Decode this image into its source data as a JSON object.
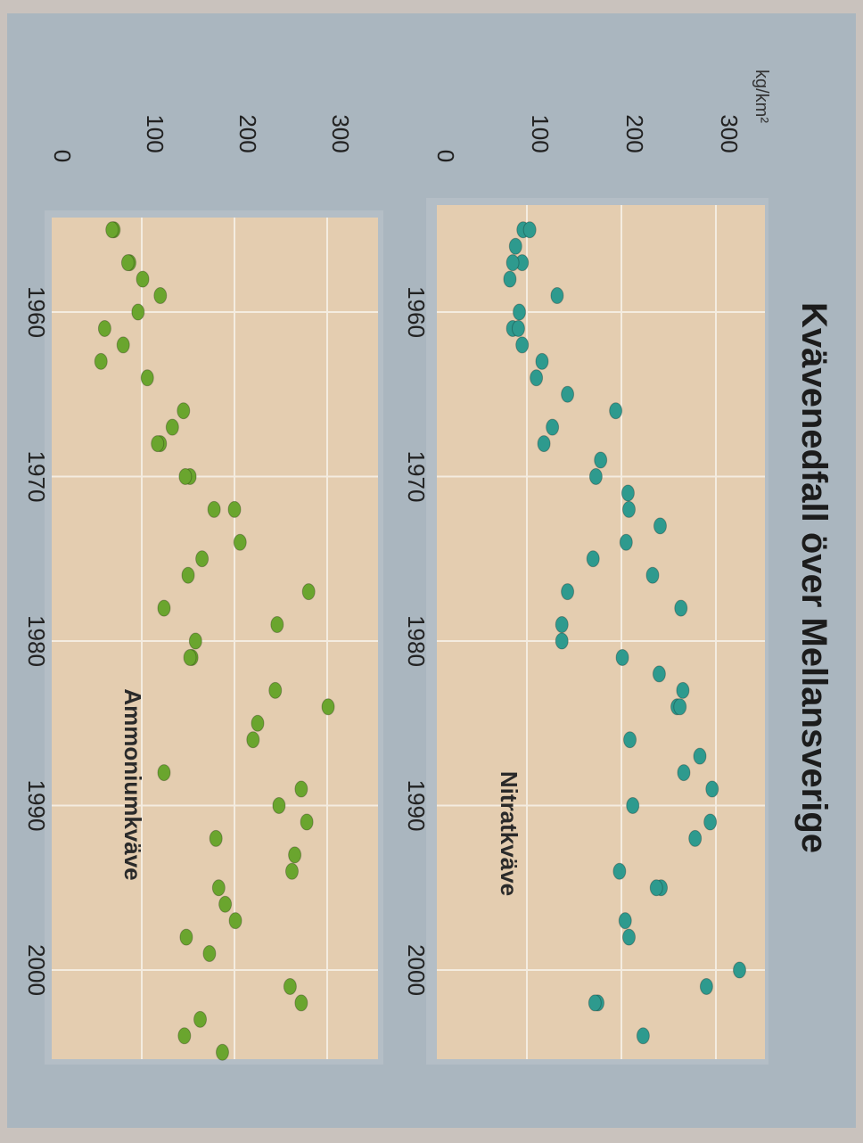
{
  "title": "Kvävenedfall över Mellansverige",
  "unit_label": "kg/km²",
  "colors": {
    "photo_background": "#c9c2bd",
    "page": "#aab6bf",
    "panel_frame": "#b4bec6",
    "plot_area": "#e4cdb0",
    "grid": "#f4ece0",
    "nitrat_points": "#2e9a8e",
    "ammonium_points": "#6aa52e",
    "text": "#222222"
  },
  "chart_data": [
    {
      "type": "scatter",
      "series": [
        {
          "name": "Nitratkväve",
          "points": [
            [
              1955,
              96
            ],
            [
              1955,
              103
            ],
            [
              1956,
              88
            ],
            [
              1957,
              95
            ],
            [
              1957,
              85
            ],
            [
              1958,
              82
            ],
            [
              1959,
              132
            ],
            [
              1960,
              92
            ],
            [
              1961,
              85
            ],
            [
              1961,
              91
            ],
            [
              1962,
              95
            ],
            [
              1963,
              116
            ],
            [
              1964,
              110
            ],
            [
              1965,
              143
            ],
            [
              1966,
              194
            ],
            [
              1967,
              127
            ],
            [
              1968,
              118
            ],
            [
              1969,
              178
            ],
            [
              1970,
              173
            ],
            [
              1971,
              207
            ],
            [
              1972,
              208
            ],
            [
              1973,
              241
            ],
            [
              1974,
              205
            ],
            [
              1975,
              170
            ],
            [
              1976,
              233
            ],
            [
              1977,
              143
            ],
            [
              1978,
              263
            ],
            [
              1979,
              137
            ],
            [
              1980,
              137
            ],
            [
              1981,
              201
            ],
            [
              1982,
              240
            ],
            [
              1983,
              265
            ],
            [
              1984,
              259
            ],
            [
              1984,
              262
            ],
            [
              1986,
              209
            ],
            [
              1987,
              283
            ],
            [
              1988,
              266
            ],
            [
              1989,
              296
            ],
            [
              1990,
              212
            ],
            [
              1991,
              294
            ],
            [
              1992,
              278
            ],
            [
              1994,
              198
            ],
            [
              1995,
              242
            ],
            [
              1995,
              237
            ],
            [
              1997,
              204
            ],
            [
              1998,
              208
            ],
            [
              2000,
              325
            ],
            [
              2001,
              290
            ],
            [
              2002,
              175
            ],
            [
              2002,
              172
            ],
            [
              2004,
              223
            ]
          ]
        }
      ]
    },
    {
      "type": "scatter",
      "series": [
        {
          "name": "Ammoniumkväve",
          "points": [
            [
              1955,
              70
            ],
            [
              1955,
              68
            ],
            [
              1957,
              87
            ],
            [
              1957,
              85
            ],
            [
              1958,
              101
            ],
            [
              1959,
              120
            ],
            [
              1960,
              96
            ],
            [
              1961,
              60
            ],
            [
              1962,
              80
            ],
            [
              1963,
              56
            ],
            [
              1964,
              106
            ],
            [
              1966,
              145
            ],
            [
              1967,
              133
            ],
            [
              1968,
              120
            ],
            [
              1968,
              117
            ],
            [
              1970,
              152
            ],
            [
              1970,
              147
            ],
            [
              1972,
              200
            ],
            [
              1972,
              178
            ],
            [
              1974,
              206
            ],
            [
              1975,
              165
            ],
            [
              1976,
              150
            ],
            [
              1977,
              280
            ],
            [
              1978,
              124
            ],
            [
              1979,
              246
            ],
            [
              1980,
              158
            ],
            [
              1981,
              154
            ],
            [
              1981,
              152
            ],
            [
              1983,
              244
            ],
            [
              1984,
              301
            ],
            [
              1985,
              225
            ],
            [
              1986,
              220
            ],
            [
              1988,
              124
            ],
            [
              1989,
              272
            ],
            [
              1990,
              248
            ],
            [
              1991,
              278
            ],
            [
              1992,
              180
            ],
            [
              1993,
              265
            ],
            [
              1994,
              262
            ],
            [
              1995,
              183
            ],
            [
              1996,
              190
            ],
            [
              1997,
              201
            ],
            [
              1998,
              148
            ],
            [
              1999,
              173
            ],
            [
              2001,
              260
            ],
            [
              2002,
              272
            ],
            [
              2003,
              163
            ],
            [
              2004,
              146
            ],
            [
              2005,
              187
            ]
          ]
        }
      ]
    }
  ],
  "xaxis": {
    "range": [
      1950,
      2006
    ],
    "ticks": [
      "1960",
      "1970",
      "1980",
      "1990",
      "2000"
    ]
  },
  "yaxis": {
    "range": [
      0,
      350
    ],
    "ticks": [
      "0",
      "100",
      "200",
      "300"
    ]
  },
  "grid": true
}
